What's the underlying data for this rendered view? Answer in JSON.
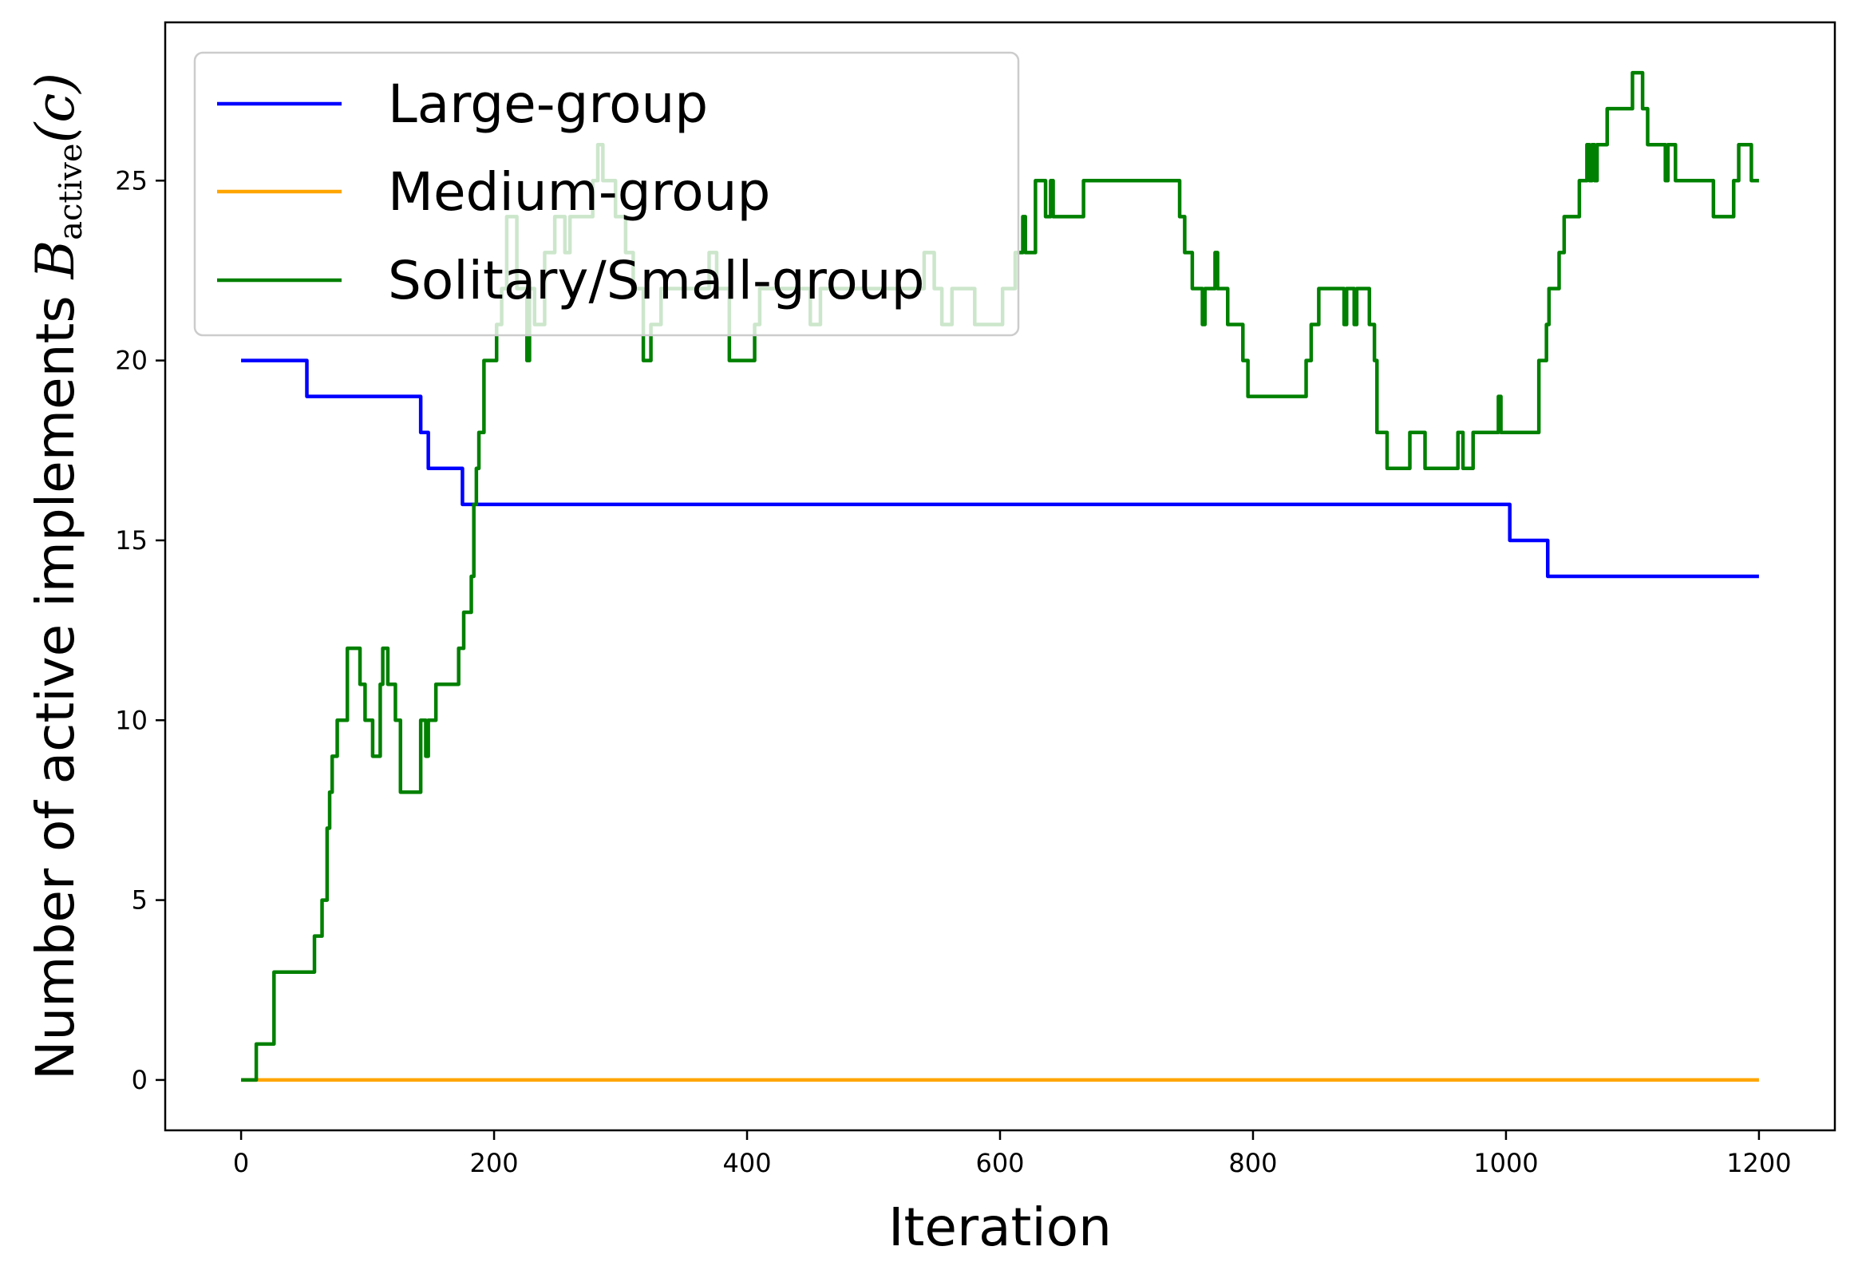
{
  "chart_data": {
    "type": "line",
    "title": "",
    "xlabel": "Iteration",
    "ylabel": {
      "text": "Number of active implements",
      "symbol": "B",
      "subscript": "active",
      "argument": "(c)"
    },
    "xlim": [
      -60,
      1260
    ],
    "ylim": [
      -1.4,
      29.4
    ],
    "xticks": [
      0,
      200,
      400,
      600,
      800,
      1000,
      1200
    ],
    "yticks": [
      0,
      5,
      10,
      15,
      20,
      25
    ],
    "legend": {
      "position": "upper-left"
    },
    "series": [
      {
        "name": "Large-group",
        "color": "#0000ff",
        "points": [
          [
            0,
            20
          ],
          [
            52,
            20
          ],
          [
            52,
            19
          ],
          [
            142,
            19
          ],
          [
            142,
            18
          ],
          [
            148,
            18
          ],
          [
            148,
            17
          ],
          [
            175,
            17
          ],
          [
            175,
            16
          ],
          [
            1003,
            16
          ],
          [
            1003,
            15
          ],
          [
            1033,
            15
          ],
          [
            1033,
            14
          ],
          [
            1200,
            14
          ]
        ]
      },
      {
        "name": "Medium-group",
        "color": "#ffa500",
        "points": [
          [
            0,
            0
          ],
          [
            1200,
            0
          ]
        ]
      },
      {
        "name": "Solitary/Small-group",
        "color": "#008000",
        "points": [
          [
            0,
            0
          ],
          [
            12,
            0
          ],
          [
            12,
            1
          ],
          [
            26,
            1
          ],
          [
            26,
            3
          ],
          [
            58,
            3
          ],
          [
            58,
            4
          ],
          [
            64,
            4
          ],
          [
            64,
            5
          ],
          [
            68,
            5
          ],
          [
            68,
            7
          ],
          [
            70,
            7
          ],
          [
            70,
            8
          ],
          [
            72,
            8
          ],
          [
            72,
            9
          ],
          [
            76,
            9
          ],
          [
            76,
            10
          ],
          [
            84,
            10
          ],
          [
            84,
            12
          ],
          [
            94,
            12
          ],
          [
            94,
            11
          ],
          [
            98,
            11
          ],
          [
            98,
            10
          ],
          [
            104,
            10
          ],
          [
            104,
            9
          ],
          [
            110,
            9
          ],
          [
            110,
            11
          ],
          [
            112,
            11
          ],
          [
            112,
            12
          ],
          [
            116,
            12
          ],
          [
            116,
            11
          ],
          [
            122,
            11
          ],
          [
            122,
            10
          ],
          [
            126,
            10
          ],
          [
            126,
            8
          ],
          [
            142,
            8
          ],
          [
            142,
            10
          ],
          [
            146,
            10
          ],
          [
            146,
            9
          ],
          [
            148,
            9
          ],
          [
            148,
            10
          ],
          [
            154,
            10
          ],
          [
            154,
            11
          ],
          [
            172,
            11
          ],
          [
            172,
            12
          ],
          [
            176,
            12
          ],
          [
            176,
            13
          ],
          [
            182,
            13
          ],
          [
            182,
            14
          ],
          [
            184,
            14
          ],
          [
            184,
            16
          ],
          [
            186,
            16
          ],
          [
            186,
            17
          ],
          [
            188,
            17
          ],
          [
            188,
            18
          ],
          [
            192,
            18
          ],
          [
            192,
            20
          ],
          [
            202,
            20
          ],
          [
            202,
            21
          ],
          [
            206,
            21
          ],
          [
            206,
            22
          ],
          [
            210,
            22
          ],
          [
            210,
            24
          ],
          [
            218,
            24
          ],
          [
            218,
            22
          ],
          [
            226,
            22
          ],
          [
            226,
            20
          ],
          [
            228,
            20
          ],
          [
            228,
            22
          ],
          [
            232,
            22
          ],
          [
            232,
            21
          ],
          [
            240,
            21
          ],
          [
            240,
            23
          ],
          [
            248,
            23
          ],
          [
            248,
            24
          ],
          [
            256,
            24
          ],
          [
            256,
            23
          ],
          [
            260,
            23
          ],
          [
            260,
            24
          ],
          [
            278,
            24
          ],
          [
            278,
            25
          ],
          [
            282,
            25
          ],
          [
            282,
            26
          ],
          [
            286,
            26
          ],
          [
            286,
            25
          ],
          [
            296,
            25
          ],
          [
            296,
            24
          ],
          [
            304,
            24
          ],
          [
            304,
            23
          ],
          [
            310,
            23
          ],
          [
            310,
            22
          ],
          [
            318,
            22
          ],
          [
            318,
            20
          ],
          [
            324,
            20
          ],
          [
            324,
            21
          ],
          [
            332,
            21
          ],
          [
            332,
            22
          ],
          [
            370,
            22
          ],
          [
            370,
            23
          ],
          [
            376,
            23
          ],
          [
            376,
            22
          ],
          [
            386,
            22
          ],
          [
            386,
            20
          ],
          [
            406,
            20
          ],
          [
            406,
            21
          ],
          [
            410,
            21
          ],
          [
            410,
            22
          ],
          [
            450,
            22
          ],
          [
            450,
            21
          ],
          [
            458,
            21
          ],
          [
            458,
            22
          ],
          [
            540,
            22
          ],
          [
            540,
            23
          ],
          [
            548,
            23
          ],
          [
            548,
            22
          ],
          [
            554,
            22
          ],
          [
            554,
            21
          ],
          [
            562,
            21
          ],
          [
            562,
            22
          ],
          [
            580,
            22
          ],
          [
            580,
            21
          ],
          [
            602,
            21
          ],
          [
            602,
            22
          ],
          [
            612,
            22
          ],
          [
            612,
            23
          ],
          [
            618,
            23
          ],
          [
            618,
            24
          ],
          [
            620,
            24
          ],
          [
            620,
            23
          ],
          [
            628,
            23
          ],
          [
            628,
            25
          ],
          [
            636,
            25
          ],
          [
            636,
            24
          ],
          [
            640,
            24
          ],
          [
            640,
            25
          ],
          [
            642,
            25
          ],
          [
            642,
            24
          ],
          [
            666,
            24
          ],
          [
            666,
            25
          ],
          [
            742,
            25
          ],
          [
            742,
            24
          ],
          [
            746,
            24
          ],
          [
            746,
            23
          ],
          [
            752,
            23
          ],
          [
            752,
            22
          ],
          [
            760,
            22
          ],
          [
            760,
            21
          ],
          [
            762,
            21
          ],
          [
            762,
            22
          ],
          [
            770,
            22
          ],
          [
            770,
            23
          ],
          [
            772,
            23
          ],
          [
            772,
            22
          ],
          [
            780,
            22
          ],
          [
            780,
            21
          ],
          [
            792,
            21
          ],
          [
            792,
            20
          ],
          [
            796,
            20
          ],
          [
            796,
            19
          ],
          [
            842,
            19
          ],
          [
            842,
            20
          ],
          [
            846,
            20
          ],
          [
            846,
            21
          ],
          [
            852,
            21
          ],
          [
            852,
            22
          ],
          [
            872,
            22
          ],
          [
            872,
            21
          ],
          [
            874,
            21
          ],
          [
            874,
            22
          ],
          [
            880,
            22
          ],
          [
            880,
            21
          ],
          [
            882,
            21
          ],
          [
            882,
            22
          ],
          [
            892,
            22
          ],
          [
            892,
            21
          ],
          [
            896,
            21
          ],
          [
            896,
            20
          ],
          [
            898,
            20
          ],
          [
            898,
            18
          ],
          [
            906,
            18
          ],
          [
            906,
            17
          ],
          [
            924,
            17
          ],
          [
            924,
            18
          ],
          [
            936,
            18
          ],
          [
            936,
            17
          ],
          [
            962,
            17
          ],
          [
            962,
            18
          ],
          [
            966,
            18
          ],
          [
            966,
            17
          ],
          [
            974,
            17
          ],
          [
            974,
            18
          ],
          [
            994,
            18
          ],
          [
            994,
            19
          ],
          [
            996,
            19
          ],
          [
            996,
            18
          ],
          [
            1026,
            18
          ],
          [
            1026,
            20
          ],
          [
            1032,
            20
          ],
          [
            1032,
            21
          ],
          [
            1034,
            21
          ],
          [
            1034,
            22
          ],
          [
            1042,
            22
          ],
          [
            1042,
            23
          ],
          [
            1046,
            23
          ],
          [
            1046,
            24
          ],
          [
            1058,
            24
          ],
          [
            1058,
            25
          ],
          [
            1064,
            25
          ],
          [
            1064,
            26
          ],
          [
            1066,
            26
          ],
          [
            1066,
            25
          ],
          [
            1068,
            25
          ],
          [
            1068,
            26
          ],
          [
            1070,
            26
          ],
          [
            1070,
            25
          ],
          [
            1072,
            25
          ],
          [
            1072,
            26
          ],
          [
            1080,
            26
          ],
          [
            1080,
            27
          ],
          [
            1100,
            27
          ],
          [
            1100,
            28
          ],
          [
            1108,
            28
          ],
          [
            1108,
            27
          ],
          [
            1112,
            27
          ],
          [
            1112,
            26
          ],
          [
            1126,
            26
          ],
          [
            1126,
            25
          ],
          [
            1128,
            25
          ],
          [
            1128,
            26
          ],
          [
            1134,
            26
          ],
          [
            1134,
            25
          ],
          [
            1164,
            25
          ],
          [
            1164,
            24
          ],
          [
            1180,
            24
          ],
          [
            1180,
            25
          ],
          [
            1184,
            25
          ],
          [
            1184,
            26
          ],
          [
            1194,
            26
          ],
          [
            1194,
            25
          ],
          [
            1200,
            25
          ]
        ]
      }
    ]
  }
}
